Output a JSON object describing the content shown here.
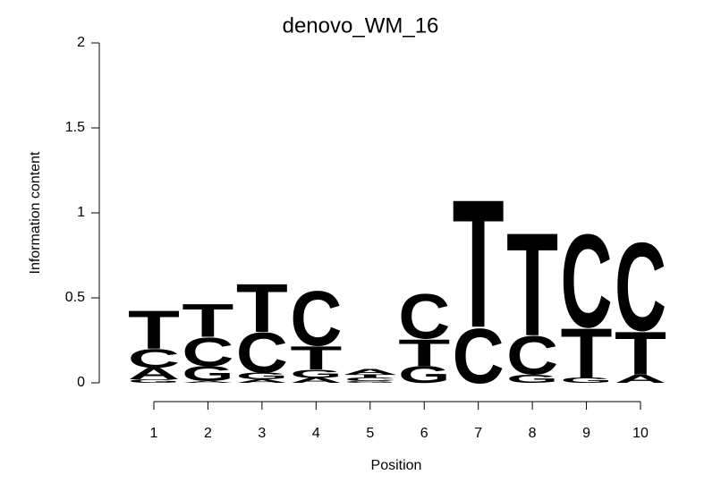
{
  "chart_data": {
    "type": "logo",
    "title": "denovo_WM_16",
    "x_label": "Position",
    "y_label": "Information content",
    "categories": [
      "1",
      "2",
      "3",
      "4",
      "5",
      "6",
      "7",
      "8",
      "9",
      "10"
    ],
    "ylim": [
      0,
      2
    ],
    "yticks": [
      0,
      0.5,
      1,
      1.5,
      2
    ],
    "colors": {
      "A": "#00e000",
      "C": "#0000ee",
      "G": "#ffa500",
      "T": "#ff0000"
    },
    "stacks": [
      [
        {
          "letter": "G",
          "value": 0.02
        },
        {
          "letter": "A",
          "value": 0.07
        },
        {
          "letter": "C",
          "value": 0.11
        },
        {
          "letter": "T",
          "value": 0.23
        }
      ],
      [
        {
          "letter": "A",
          "value": 0.01
        },
        {
          "letter": "G",
          "value": 0.09
        },
        {
          "letter": "C",
          "value": 0.17
        },
        {
          "letter": "T",
          "value": 0.2
        }
      ],
      [
        {
          "letter": "A",
          "value": 0.02
        },
        {
          "letter": "G",
          "value": 0.04
        },
        {
          "letter": "C",
          "value": 0.24
        },
        {
          "letter": "T",
          "value": 0.29
        }
      ],
      [
        {
          "letter": "A",
          "value": 0.03
        },
        {
          "letter": "G",
          "value": 0.05
        },
        {
          "letter": "T",
          "value": 0.14
        },
        {
          "letter": "C",
          "value": 0.33
        }
      ],
      [
        {
          "letter": "G",
          "value": 0.01
        },
        {
          "letter": "C",
          "value": 0.02
        },
        {
          "letter": "T",
          "value": 0.02
        },
        {
          "letter": "A",
          "value": 0.03
        }
      ],
      [
        {
          "letter": "G",
          "value": 0.1
        },
        {
          "letter": "T",
          "value": 0.16
        },
        {
          "letter": "C",
          "value": 0.27
        }
      ],
      [
        {
          "letter": "C",
          "value": 0.33
        },
        {
          "letter": "T",
          "value": 0.77
        }
      ],
      [
        {
          "letter": "G",
          "value": 0.05
        },
        {
          "letter": "C",
          "value": 0.23
        },
        {
          "letter": "T",
          "value": 0.62
        }
      ],
      [
        {
          "letter": "G",
          "value": 0.03
        },
        {
          "letter": "T",
          "value": 0.3
        },
        {
          "letter": "C",
          "value": 0.56
        }
      ],
      [
        {
          "letter": "A",
          "value": 0.05
        },
        {
          "letter": "T",
          "value": 0.26
        },
        {
          "letter": "C",
          "value": 0.53
        }
      ]
    ]
  }
}
